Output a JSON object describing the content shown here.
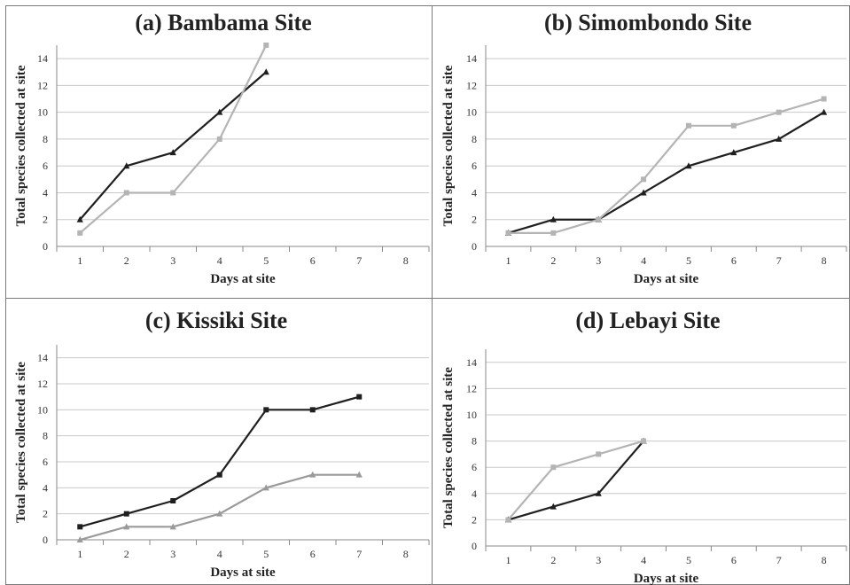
{
  "chart_data": [
    {
      "type": "line",
      "title": "(a) Bambama Site",
      "xlabel": "Days at site",
      "ylabel": "Total species collected at site",
      "x": [
        1,
        2,
        3,
        4,
        5,
        6,
        7,
        8
      ],
      "ylim": [
        0,
        15
      ],
      "yticks": [
        0,
        2,
        4,
        6,
        8,
        10,
        12,
        14
      ],
      "grid": true,
      "series": [
        {
          "marker": "triangle",
          "color": "#1f1f1f",
          "x": [
            1,
            2,
            3,
            4,
            5
          ],
          "values": [
            2,
            6,
            7,
            10,
            13
          ]
        },
        {
          "marker": "square",
          "color": "#b4b4b4",
          "x": [
            1,
            2,
            3,
            4,
            5
          ],
          "values": [
            1,
            4,
            4,
            8,
            15
          ]
        }
      ]
    },
    {
      "type": "line",
      "title": "(b) Simombondo Site",
      "xlabel": "Days at site",
      "ylabel": "Total species collected at site",
      "x": [
        1,
        2,
        3,
        4,
        5,
        6,
        7,
        8
      ],
      "ylim": [
        0,
        15
      ],
      "yticks": [
        0,
        2,
        4,
        6,
        8,
        10,
        12,
        14
      ],
      "grid": true,
      "series": [
        {
          "marker": "triangle",
          "color": "#1f1f1f",
          "x": [
            1,
            2,
            3,
            4,
            5,
            6,
            7,
            8
          ],
          "values": [
            1,
            2,
            2,
            4,
            6,
            7,
            8,
            10
          ]
        },
        {
          "marker": "square",
          "color": "#b4b4b4",
          "x": [
            1,
            2,
            3,
            4,
            5,
            6,
            7,
            8
          ],
          "values": [
            1,
            1,
            2,
            5,
            9,
            9,
            10,
            11
          ]
        }
      ]
    },
    {
      "type": "line",
      "title": "(c) Kissiki Site",
      "xlabel": "Days at site",
      "ylabel": "Total species collected at site",
      "x": [
        1,
        2,
        3,
        4,
        5,
        6,
        7,
        8
      ],
      "ylim": [
        0,
        15
      ],
      "yticks": [
        0,
        2,
        4,
        6,
        8,
        10,
        12,
        14
      ],
      "grid": true,
      "series": [
        {
          "marker": "square",
          "color": "#1f1f1f",
          "x": [
            1,
            2,
            3,
            4,
            5,
            6,
            7
          ],
          "values": [
            1,
            2,
            3,
            5,
            10,
            10,
            11
          ]
        },
        {
          "marker": "triangle",
          "color": "#9a9a9a",
          "x": [
            1,
            2,
            3,
            4,
            5,
            6,
            7
          ],
          "values": [
            0,
            1,
            1,
            2,
            4,
            5,
            5
          ]
        }
      ]
    },
    {
      "type": "line",
      "title": "(d) Lebayi Site",
      "xlabel": "Days at site",
      "ylabel": "Total species collected at site",
      "x": [
        1,
        2,
        3,
        4,
        5,
        6,
        7,
        8
      ],
      "ylim": [
        0,
        15
      ],
      "yticks": [
        0,
        2,
        4,
        6,
        8,
        10,
        12,
        14
      ],
      "grid": true,
      "series": [
        {
          "marker": "triangle",
          "color": "#1f1f1f",
          "x": [
            1,
            2,
            3,
            4
          ],
          "values": [
            2,
            3,
            4,
            8
          ]
        },
        {
          "marker": "square",
          "color": "#b4b4b4",
          "x": [
            1,
            2,
            3,
            4
          ],
          "values": [
            2,
            6,
            7,
            8
          ]
        }
      ]
    }
  ]
}
